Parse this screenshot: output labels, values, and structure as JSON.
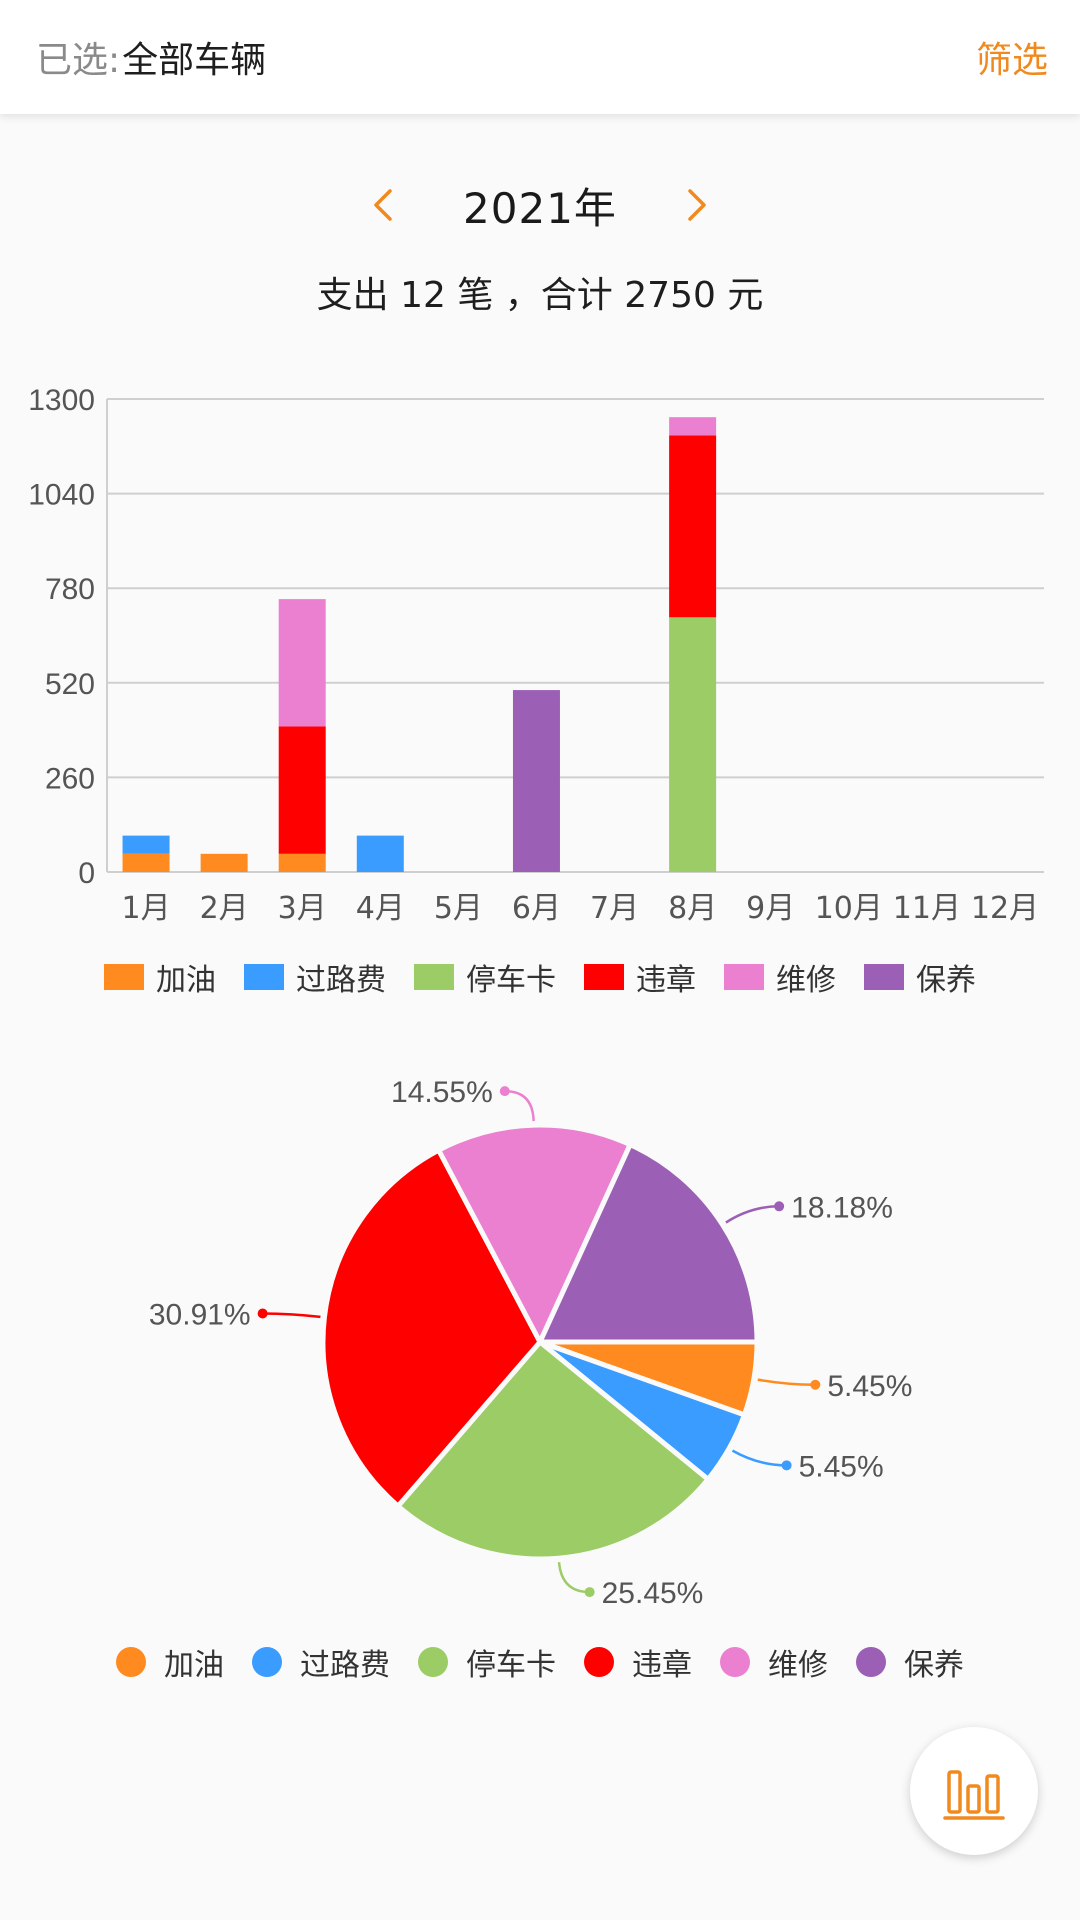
{
  "header": {
    "selected_prefix": "已选:",
    "selected_value": "全部车辆",
    "filter_label": "筛选"
  },
  "year_nav": {
    "year": "2021年"
  },
  "summary": {
    "prefix": "支出 ",
    "count": "12",
    "middle": " 笔 ，合计 ",
    "total": "2750",
    "suffix": " 元"
  },
  "colors": {
    "accent": "#f18a1e",
    "加油": "#ff8a1f",
    "过路费": "#3a9cff",
    "停车卡": "#9ccc65",
    "违章": "#ff0000",
    "维修": "#ea80cf",
    "保养": "#9b5fb5"
  },
  "categories": [
    "加油",
    "过路费",
    "停车卡",
    "违章",
    "维修",
    "保养"
  ],
  "chart_data": [
    {
      "type": "bar",
      "stacked": true,
      "categories": [
        "1月",
        "2月",
        "3月",
        "4月",
        "5月",
        "6月",
        "7月",
        "8月",
        "9月",
        "10月",
        "11月",
        "12月"
      ],
      "y_ticks": [
        "0",
        "260",
        "520",
        "780",
        "1040",
        "1300"
      ],
      "ylim": [
        0,
        1300
      ],
      "grid": true,
      "legend_position": "bottom",
      "series": [
        {
          "name": "加油",
          "values": [
            50,
            50,
            50,
            0,
            0,
            0,
            0,
            0,
            0,
            0,
            0,
            0
          ]
        },
        {
          "name": "过路费",
          "values": [
            50,
            0,
            0,
            100,
            0,
            0,
            0,
            0,
            0,
            0,
            0,
            0
          ]
        },
        {
          "name": "停车卡",
          "values": [
            0,
            0,
            0,
            0,
            0,
            0,
            0,
            700,
            0,
            0,
            0,
            0
          ]
        },
        {
          "name": "违章",
          "values": [
            0,
            0,
            350,
            0,
            0,
            0,
            0,
            500,
            0,
            0,
            0,
            0
          ]
        },
        {
          "name": "维修",
          "values": [
            0,
            0,
            350,
            0,
            0,
            0,
            0,
            50,
            0,
            0,
            0,
            0
          ]
        },
        {
          "name": "保养",
          "values": [
            0,
            0,
            0,
            0,
            0,
            500,
            0,
            0,
            0,
            0,
            0,
            0
          ]
        }
      ]
    },
    {
      "type": "pie",
      "legend_position": "bottom",
      "slices": [
        {
          "name": "加油",
          "value": 5.45,
          "label": "5.45%"
        },
        {
          "name": "过路费",
          "value": 5.45,
          "label": "5.45%"
        },
        {
          "name": "停车卡",
          "value": 25.45,
          "label": "25.45%"
        },
        {
          "name": "违章",
          "value": 30.91,
          "label": "30.91%"
        },
        {
          "name": "维修",
          "value": 14.55,
          "label": "14.55%"
        },
        {
          "name": "保养",
          "value": 18.18,
          "label": "18.18%"
        }
      ]
    }
  ],
  "icons": {
    "prev": "chevron-left-icon",
    "next": "chevron-right-icon",
    "fab": "bar-chart-icon"
  }
}
